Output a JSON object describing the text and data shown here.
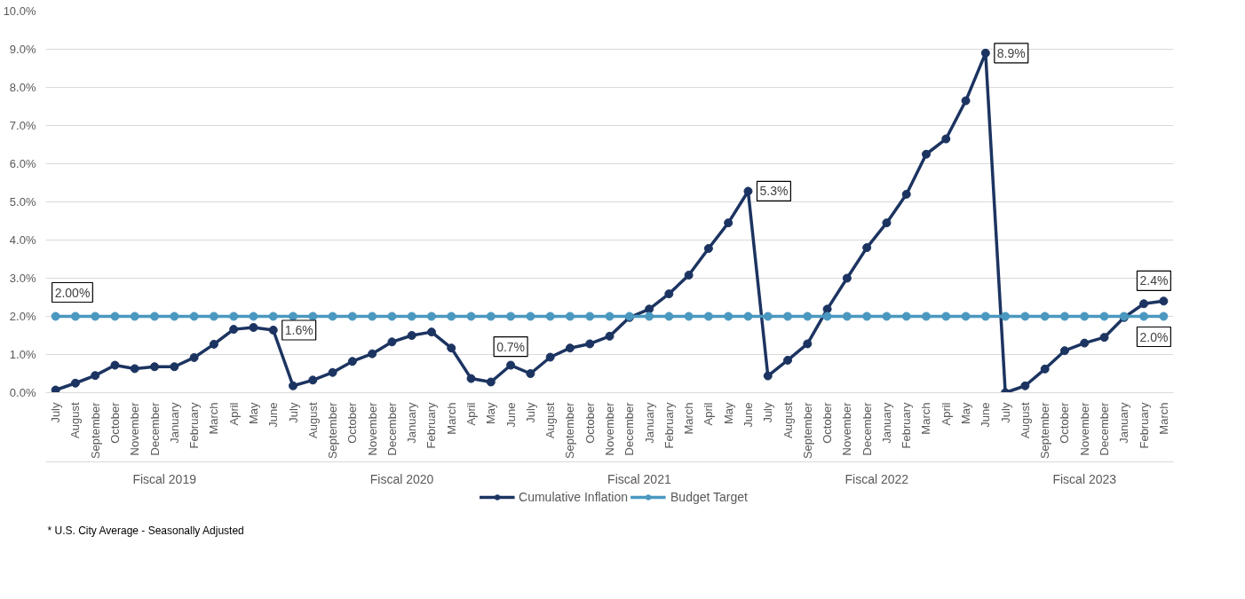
{
  "chart_data": {
    "type": "line",
    "categories": [
      "July",
      "August",
      "September",
      "October",
      "November",
      "December",
      "January",
      "February",
      "March",
      "April",
      "May",
      "June",
      "July",
      "August",
      "September",
      "October",
      "November",
      "December",
      "January",
      "February",
      "March",
      "April",
      "May",
      "June",
      "July",
      "August",
      "September",
      "October",
      "November",
      "December",
      "January",
      "February",
      "March",
      "April",
      "May",
      "June",
      "July",
      "August",
      "September",
      "October",
      "November",
      "December",
      "January",
      "February",
      "March",
      "April",
      "May",
      "June",
      "July",
      "August",
      "September",
      "October",
      "November",
      "December",
      "January",
      "February",
      "March"
    ],
    "series": [
      {
        "name": "Cumulative Inflation",
        "color": "#1c3461",
        "values": [
          0.07,
          0.25,
          0.45,
          0.72,
          0.63,
          0.68,
          0.68,
          0.92,
          1.27,
          1.66,
          1.71,
          1.64,
          0.18,
          0.33,
          0.53,
          0.82,
          1.02,
          1.33,
          1.5,
          1.59,
          1.17,
          0.37,
          0.28,
          0.72,
          0.5,
          0.93,
          1.17,
          1.28,
          1.48,
          1.97,
          2.19,
          2.59,
          3.08,
          3.78,
          4.45,
          5.28,
          0.44,
          0.85,
          1.28,
          2.19,
          3.0,
          3.8,
          4.45,
          5.2,
          6.25,
          6.65,
          7.65,
          8.9,
          0.0,
          0.18,
          0.62,
          1.1,
          1.3,
          1.45,
          1.97,
          2.33,
          2.4
        ],
        "value_labels": [
          null,
          null,
          null,
          null,
          null,
          null,
          null,
          null,
          null,
          null,
          null,
          "1.6%",
          null,
          null,
          null,
          null,
          null,
          null,
          null,
          null,
          null,
          null,
          null,
          "0.7%",
          null,
          null,
          null,
          null,
          null,
          null,
          null,
          null,
          null,
          null,
          null,
          "5.3%",
          null,
          null,
          null,
          null,
          null,
          null,
          null,
          null,
          null,
          null,
          null,
          "8.9%",
          null,
          null,
          null,
          null,
          null,
          null,
          null,
          null,
          "2.4%"
        ]
      },
      {
        "name": "Budget Target",
        "color": "#4a98c0",
        "values": [
          2.0,
          2.0,
          2.0,
          2.0,
          2.0,
          2.0,
          2.0,
          2.0,
          2.0,
          2.0,
          2.0,
          2.0,
          2.0,
          2.0,
          2.0,
          2.0,
          2.0,
          2.0,
          2.0,
          2.0,
          2.0,
          2.0,
          2.0,
          2.0,
          2.0,
          2.0,
          2.0,
          2.0,
          2.0,
          2.0,
          2.0,
          2.0,
          2.0,
          2.0,
          2.0,
          2.0,
          2.0,
          2.0,
          2.0,
          2.0,
          2.0,
          2.0,
          2.0,
          2.0,
          2.0,
          2.0,
          2.0,
          2.0,
          2.0,
          2.0,
          2.0,
          2.0,
          2.0,
          2.0,
          2.0,
          2.0,
          2.0
        ],
        "value_labels": [
          "2.00%",
          null,
          null,
          null,
          null,
          null,
          null,
          null,
          null,
          null,
          null,
          null,
          null,
          null,
          null,
          null,
          null,
          null,
          null,
          null,
          null,
          null,
          null,
          null,
          null,
          null,
          null,
          null,
          null,
          null,
          null,
          null,
          null,
          null,
          null,
          null,
          null,
          null,
          null,
          null,
          null,
          null,
          null,
          null,
          null,
          null,
          null,
          null,
          null,
          null,
          null,
          null,
          null,
          null,
          null,
          null,
          "2.0%"
        ]
      }
    ],
    "ylim": [
      0,
      10
    ],
    "yticks": [
      {
        "value": 0,
        "label": "0.0%"
      },
      {
        "value": 1,
        "label": "1.0%"
      },
      {
        "value": 2,
        "label": "2.0%"
      },
      {
        "value": 3,
        "label": "3.0%"
      },
      {
        "value": 4,
        "label": "4.0%"
      },
      {
        "value": 5,
        "label": "5.0%"
      },
      {
        "value": 6,
        "label": "6.0%"
      },
      {
        "value": 7,
        "label": "7.0%"
      },
      {
        "value": 8,
        "label": "8.0%"
      },
      {
        "value": 9,
        "label": "9.0%"
      },
      {
        "value": 10,
        "label": "10.0%"
      }
    ],
    "annotations": [
      "Fiscal 2019",
      "Fiscal 2020",
      "Fiscal 2021",
      "Fiscal 2022",
      "Fiscal 2023",
      "* U.S. City Average - Seasonally Adjusted"
    ],
    "grid": "y",
    "legend": "bottom",
    "marker": "circle",
    "line_style": "solid"
  }
}
